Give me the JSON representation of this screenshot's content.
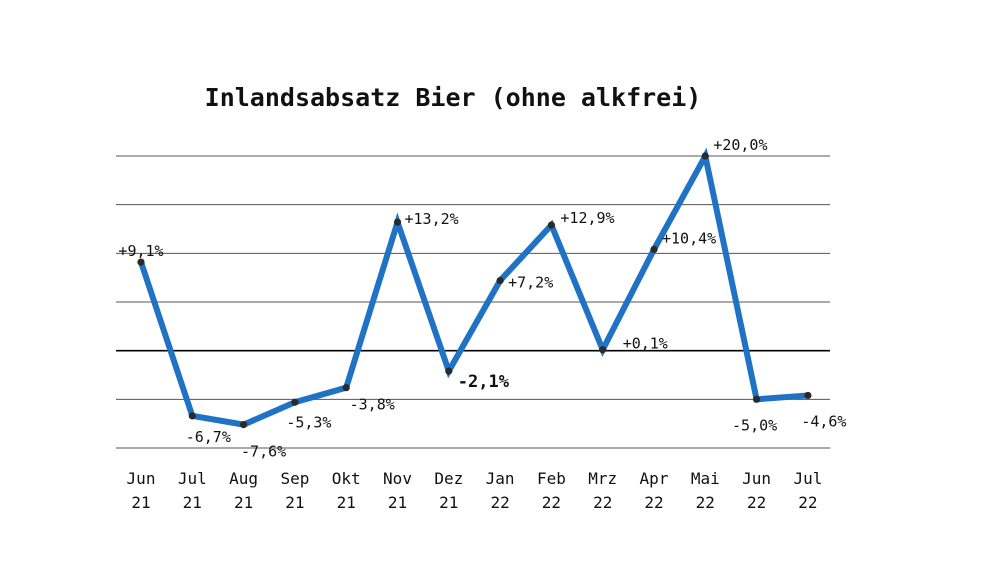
{
  "chart_data": {
    "type": "line",
    "title": "Inlandsabsatz Bier (ohne alkfrei)",
    "categories": [
      [
        "Jun",
        "21"
      ],
      [
        "Jul",
        "21"
      ],
      [
        "Aug",
        "21"
      ],
      [
        "Sep",
        "21"
      ],
      [
        "Okt",
        "21"
      ],
      [
        "Nov",
        "21"
      ],
      [
        "Dez",
        "21"
      ],
      [
        "Jan",
        "22"
      ],
      [
        "Feb",
        "22"
      ],
      [
        "Mrz",
        "22"
      ],
      [
        "Apr",
        "22"
      ],
      [
        "Mai",
        "22"
      ],
      [
        "Jun",
        "22"
      ],
      [
        "Jul",
        "22"
      ]
    ],
    "series": [
      {
        "values": [
          9.1,
          -6.7,
          -7.6,
          -5.3,
          -3.8,
          13.2,
          -2.1,
          7.2,
          12.9,
          0.1,
          10.4,
          20.0,
          -5.0,
          -4.6
        ],
        "labels": [
          "+9,1%",
          "-6,7%",
          "-7,6%",
          "-5,3%",
          "-3,8%",
          "+13,2%",
          "-2,1%",
          "+7,2%",
          "+12,9%",
          "+0,1%",
          "+10,4%",
          "+20,0%",
          "-5,0%",
          "-4,6%"
        ]
      }
    ],
    "ylim": [
      -10,
      20
    ],
    "grid": true,
    "legend": "none",
    "colors": {
      "line": "#1f72c4",
      "marker": "#2a2a2a",
      "grid": "#555555",
      "zero_line": "#000000"
    }
  }
}
